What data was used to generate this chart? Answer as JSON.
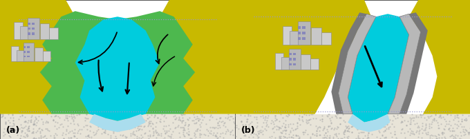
{
  "fig_width": 6.8,
  "fig_height": 2.02,
  "dpi": 100,
  "background_color": "#ffffff",
  "label_a": "(a)",
  "label_b": "(b)",
  "colors": {
    "yellow_land": "#c8b900",
    "green_floodplain": "#4db84e",
    "cyan_water": "#00ccdd",
    "light_blue_shallow": "#aaddee",
    "light_blue_river": "#88ccee",
    "gray_levee_light": "#b8b8b8",
    "gray_levee_dark": "#787878",
    "sandy": "#e8e4d8",
    "sandy_dots": "#aaaaaa",
    "white": "#ffffff",
    "dotted_blue": "#9999cc",
    "black": "#000000"
  }
}
